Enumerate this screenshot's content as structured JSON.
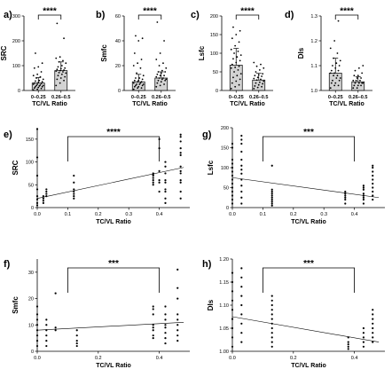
{
  "chart_data": [
    {
      "panel": "a)",
      "type": "bar",
      "ylabel": "SRC",
      "xlabel": "TC/VL Ratio",
      "categories": [
        "0–0.25",
        "0.26–0.5"
      ],
      "values": [
        30,
        80
      ],
      "errors": [
        22,
        35
      ],
      "ylim": [
        0,
        300
      ],
      "yticks": [
        0,
        100,
        200,
        300
      ],
      "significance": "****",
      "points": [
        [
          2,
          5,
          8,
          10,
          12,
          15,
          15,
          18,
          20,
          20,
          22,
          25,
          25,
          28,
          30,
          32,
          35,
          38,
          40,
          45,
          50,
          55,
          60,
          65,
          75,
          90,
          95,
          110,
          150
        ],
        [
          20,
          30,
          40,
          45,
          50,
          55,
          60,
          65,
          70,
          72,
          75,
          78,
          80,
          82,
          85,
          88,
          90,
          95,
          100,
          110,
          115,
          120,
          130,
          135,
          210,
          270
        ]
      ]
    },
    {
      "panel": "b)",
      "type": "bar",
      "ylabel": "Smfc",
      "xlabel": "TC/VL Ratio",
      "categories": [
        "0–0.25",
        "0.26–0.5"
      ],
      "values": [
        7,
        10
      ],
      "errors": [
        6,
        5
      ],
      "ylim": [
        0,
        60
      ],
      "yticks": [
        0,
        20,
        40,
        60
      ],
      "significance": "****",
      "points": [
        [
          1,
          2,
          2,
          3,
          3,
          4,
          4,
          5,
          5,
          5,
          6,
          6,
          7,
          7,
          8,
          8,
          9,
          10,
          10,
          12,
          14,
          18,
          20,
          22,
          25,
          30,
          40,
          42,
          44
        ],
        [
          3,
          4,
          5,
          6,
          7,
          8,
          8,
          9,
          9,
          10,
          10,
          11,
          12,
          12,
          13,
          14,
          15,
          15,
          16,
          18,
          20,
          22,
          25,
          30,
          40,
          55
        ]
      ]
    },
    {
      "panel": "c)",
      "type": "bar",
      "ylabel": "Lsfc",
      "xlabel": "TC/VL Ratio",
      "categories": [
        "0–0.25",
        "0.26–0.5"
      ],
      "values": [
        68,
        28
      ],
      "errors": [
        45,
        18
      ],
      "ylim": [
        0,
        200
      ],
      "yticks": [
        0,
        50,
        100,
        150,
        200
      ],
      "significance": "****",
      "points": [
        [
          5,
          10,
          15,
          20,
          25,
          30,
          35,
          40,
          45,
          50,
          55,
          60,
          62,
          65,
          70,
          75,
          80,
          85,
          90,
          95,
          100,
          105,
          110,
          120,
          130,
          140,
          150,
          160,
          170
        ],
        [
          5,
          8,
          10,
          12,
          15,
          18,
          20,
          22,
          25,
          28,
          30,
          32,
          35,
          38,
          40,
          42,
          45,
          50,
          55,
          60,
          65,
          70,
          75
        ]
      ]
    },
    {
      "panel": "d)",
      "type": "bar",
      "ylabel": "DIs",
      "xlabel": "TC/VL Ratio",
      "categories": [
        "0–0.25",
        "0.26–0.5"
      ],
      "values": [
        1.07,
        1.035
      ],
      "errors": [
        0.06,
        0.02
      ],
      "ylim": [
        1.0,
        1.3
      ],
      "yticks": [
        1.0,
        1.1,
        1.2,
        1.3
      ],
      "significance": "****",
      "points": [
        [
          1.01,
          1.02,
          1.02,
          1.03,
          1.03,
          1.04,
          1.04,
          1.05,
          1.05,
          1.06,
          1.06,
          1.07,
          1.07,
          1.08,
          1.08,
          1.09,
          1.1,
          1.1,
          1.11,
          1.12,
          1.13,
          1.15,
          1.17,
          1.2,
          1.28
        ],
        [
          1.01,
          1.01,
          1.02,
          1.02,
          1.02,
          1.03,
          1.03,
          1.03,
          1.03,
          1.04,
          1.04,
          1.04,
          1.05,
          1.05,
          1.06,
          1.06,
          1.07,
          1.08,
          1.09,
          1.1
        ]
      ]
    },
    {
      "panel": "e)",
      "type": "scatter",
      "ylabel": "SRC",
      "xlabel": "TC/VL Ratio",
      "xlim": [
        0,
        0.5
      ],
      "ylim": [
        0,
        175
      ],
      "xticks": [
        0.0,
        0.1,
        0.2,
        0.3,
        0.4
      ],
      "yticks": [
        0,
        50,
        100,
        150
      ],
      "significance": "****",
      "bracket": [
        0.1,
        0.4
      ],
      "trend": [
        [
          0,
          20
        ],
        [
          0.48,
          88
        ]
      ],
      "points": [
        [
          0.0,
          5
        ],
        [
          0.0,
          10
        ],
        [
          0.0,
          18
        ],
        [
          0.0,
          25
        ],
        [
          0.0,
          40
        ],
        [
          0.0,
          70
        ],
        [
          0.0,
          110
        ],
        [
          0.0,
          172
        ],
        [
          0.02,
          10
        ],
        [
          0.02,
          15
        ],
        [
          0.02,
          20
        ],
        [
          0.02,
          25
        ],
        [
          0.03,
          25
        ],
        [
          0.03,
          30
        ],
        [
          0.03,
          35
        ],
        [
          0.03,
          40
        ],
        [
          0.12,
          20
        ],
        [
          0.12,
          25
        ],
        [
          0.12,
          30
        ],
        [
          0.12,
          35
        ],
        [
          0.12,
          40
        ],
        [
          0.12,
          55
        ],
        [
          0.12,
          70
        ],
        [
          0.38,
          50
        ],
        [
          0.38,
          55
        ],
        [
          0.38,
          60
        ],
        [
          0.38,
          65
        ],
        [
          0.38,
          70
        ],
        [
          0.38,
          72
        ],
        [
          0.38,
          75
        ],
        [
          0.4,
          35
        ],
        [
          0.4,
          55
        ],
        [
          0.4,
          60
        ],
        [
          0.4,
          80
        ],
        [
          0.4,
          130
        ],
        [
          0.4,
          150
        ],
        [
          0.42,
          10
        ],
        [
          0.42,
          20
        ],
        [
          0.42,
          35
        ],
        [
          0.42,
          40
        ],
        [
          0.42,
          55
        ],
        [
          0.42,
          60
        ],
        [
          0.42,
          75
        ],
        [
          0.42,
          90
        ],
        [
          0.42,
          100
        ],
        [
          0.47,
          20
        ],
        [
          0.47,
          35
        ],
        [
          0.47,
          55
        ],
        [
          0.47,
          60
        ],
        [
          0.47,
          75
        ],
        [
          0.47,
          80
        ],
        [
          0.47,
          90
        ],
        [
          0.47,
          115
        ],
        [
          0.47,
          120
        ],
        [
          0.47,
          130
        ],
        [
          0.47,
          145
        ],
        [
          0.47,
          155
        ],
        [
          0.47,
          160
        ]
      ]
    },
    {
      "panel": "g)",
      "type": "scatter",
      "ylabel": "Lsfc",
      "xlabel": "TC/VL Ratio",
      "xlim": [
        0,
        0.5
      ],
      "ylim": [
        0,
        200
      ],
      "xticks": [
        0.0,
        0.1,
        0.2,
        0.3,
        0.4
      ],
      "yticks": [
        0,
        50,
        100,
        150,
        200
      ],
      "significance": "***",
      "bracket": [
        0.1,
        0.4
      ],
      "trend": [
        [
          0,
          75
        ],
        [
          0.48,
          25
        ]
      ],
      "points": [
        [
          0.0,
          10
        ],
        [
          0.0,
          20
        ],
        [
          0.0,
          30
        ],
        [
          0.0,
          40
        ],
        [
          0.0,
          50
        ],
        [
          0.0,
          60
        ],
        [
          0.0,
          70
        ],
        [
          0.0,
          80
        ],
        [
          0.0,
          90
        ],
        [
          0.0,
          100
        ],
        [
          0.0,
          110
        ],
        [
          0.0,
          120
        ],
        [
          0.0,
          150
        ],
        [
          0.0,
          160
        ],
        [
          0.03,
          10
        ],
        [
          0.03,
          25
        ],
        [
          0.03,
          40
        ],
        [
          0.03,
          55
        ],
        [
          0.03,
          70
        ],
        [
          0.03,
          85
        ],
        [
          0.03,
          95
        ],
        [
          0.03,
          105
        ],
        [
          0.03,
          120
        ],
        [
          0.03,
          140
        ],
        [
          0.03,
          160
        ],
        [
          0.03,
          170
        ],
        [
          0.03,
          180
        ],
        [
          0.13,
          5
        ],
        [
          0.13,
          10
        ],
        [
          0.13,
          15
        ],
        [
          0.13,
          20
        ],
        [
          0.13,
          25
        ],
        [
          0.13,
          30
        ],
        [
          0.13,
          35
        ],
        [
          0.13,
          40
        ],
        [
          0.13,
          45
        ],
        [
          0.13,
          105
        ],
        [
          0.37,
          10
        ],
        [
          0.37,
          20
        ],
        [
          0.37,
          25
        ],
        [
          0.37,
          30
        ],
        [
          0.37,
          35
        ],
        [
          0.37,
          40
        ],
        [
          0.43,
          10
        ],
        [
          0.43,
          20
        ],
        [
          0.43,
          25
        ],
        [
          0.43,
          30
        ],
        [
          0.43,
          35
        ],
        [
          0.43,
          45
        ],
        [
          0.43,
          50
        ],
        [
          0.43,
          55
        ],
        [
          0.46,
          20
        ],
        [
          0.46,
          30
        ],
        [
          0.46,
          40
        ],
        [
          0.46,
          50
        ],
        [
          0.46,
          60
        ],
        [
          0.46,
          70
        ],
        [
          0.46,
          80
        ],
        [
          0.46,
          90
        ],
        [
          0.46,
          100
        ],
        [
          0.46,
          105
        ]
      ]
    },
    {
      "panel": "f)",
      "type": "scatter",
      "ylabel": "Smfc",
      "xlabel": "TC/VL Ratio",
      "xlim": [
        0,
        0.5
      ],
      "ylim": [
        0,
        35
      ],
      "xticks": [
        0.0,
        0.2,
        0.4
      ],
      "yticks": [
        0,
        10,
        20,
        30
      ],
      "significance": "***",
      "bracket": [
        0.1,
        0.4
      ],
      "trend": [
        [
          0,
          8
        ],
        [
          0.48,
          11
        ]
      ],
      "points": [
        [
          0.0,
          2
        ],
        [
          0.0,
          4
        ],
        [
          0.0,
          6
        ],
        [
          0.0,
          8
        ],
        [
          0.0,
          10
        ],
        [
          0.0,
          12
        ],
        [
          0.0,
          14
        ],
        [
          0.0,
          17
        ],
        [
          0.03,
          2
        ],
        [
          0.03,
          4
        ],
        [
          0.03,
          6
        ],
        [
          0.03,
          8
        ],
        [
          0.03,
          10
        ],
        [
          0.03,
          12
        ],
        [
          0.06,
          8
        ],
        [
          0.06,
          9
        ],
        [
          0.06,
          22
        ],
        [
          0.13,
          2
        ],
        [
          0.13,
          3
        ],
        [
          0.13,
          4
        ],
        [
          0.13,
          6
        ],
        [
          0.13,
          8
        ],
        [
          0.38,
          5
        ],
        [
          0.38,
          6
        ],
        [
          0.38,
          8
        ],
        [
          0.38,
          9
        ],
        [
          0.38,
          10
        ],
        [
          0.38,
          14
        ],
        [
          0.38,
          16
        ],
        [
          0.38,
          17
        ],
        [
          0.42,
          3
        ],
        [
          0.42,
          5
        ],
        [
          0.42,
          7
        ],
        [
          0.42,
          9
        ],
        [
          0.42,
          10
        ],
        [
          0.42,
          12
        ],
        [
          0.42,
          14
        ],
        [
          0.42,
          17
        ],
        [
          0.46,
          4
        ],
        [
          0.46,
          6
        ],
        [
          0.46,
          8
        ],
        [
          0.46,
          10
        ],
        [
          0.46,
          12
        ],
        [
          0.46,
          14
        ],
        [
          0.46,
          20
        ],
        [
          0.46,
          24
        ],
        [
          0.46,
          31
        ]
      ]
    },
    {
      "panel": "h)",
      "type": "scatter",
      "ylabel": "DIs",
      "xlabel": "TC/VL Ratio",
      "xlim": [
        0,
        0.5
      ],
      "ylim": [
        1.0,
        1.2
      ],
      "xticks": [
        0.0,
        0.2,
        0.4
      ],
      "yticks": [
        1.0,
        1.05,
        1.1,
        1.15,
        1.2
      ],
      "significance": "***",
      "bracket": [
        0.1,
        0.4
      ],
      "trend": [
        [
          0,
          1.075
        ],
        [
          0.48,
          1.02
        ]
      ],
      "points": [
        [
          0.0,
          1.01
        ],
        [
          0.0,
          1.03
        ],
        [
          0.0,
          1.05
        ],
        [
          0.0,
          1.07
        ],
        [
          0.0,
          1.09
        ],
        [
          0.0,
          1.11
        ],
        [
          0.0,
          1.13
        ],
        [
          0.0,
          1.15
        ],
        [
          0.0,
          1.17
        ],
        [
          0.03,
          1.02
        ],
        [
          0.03,
          1.04
        ],
        [
          0.03,
          1.06
        ],
        [
          0.03,
          1.08
        ],
        [
          0.03,
          1.1
        ],
        [
          0.03,
          1.12
        ],
        [
          0.03,
          1.14
        ],
        [
          0.03,
          1.16
        ],
        [
          0.03,
          1.18
        ],
        [
          0.13,
          1.01
        ],
        [
          0.13,
          1.02
        ],
        [
          0.13,
          1.03
        ],
        [
          0.13,
          1.04
        ],
        [
          0.13,
          1.05
        ],
        [
          0.13,
          1.06
        ],
        [
          0.13,
          1.07
        ],
        [
          0.13,
          1.08
        ],
        [
          0.13,
          1.09
        ],
        [
          0.13,
          1.1
        ],
        [
          0.13,
          1.11
        ],
        [
          0.13,
          1.12
        ],
        [
          0.38,
          1.005
        ],
        [
          0.38,
          1.01
        ],
        [
          0.38,
          1.015
        ],
        [
          0.38,
          1.02
        ],
        [
          0.38,
          1.03
        ],
        [
          0.43,
          1.01
        ],
        [
          0.43,
          1.02
        ],
        [
          0.43,
          1.03
        ],
        [
          0.43,
          1.04
        ],
        [
          0.43,
          1.05
        ],
        [
          0.46,
          1.02
        ],
        [
          0.46,
          1.03
        ],
        [
          0.46,
          1.04
        ],
        [
          0.46,
          1.05
        ],
        [
          0.46,
          1.06
        ],
        [
          0.46,
          1.07
        ],
        [
          0.46,
          1.08
        ],
        [
          0.46,
          1.09
        ]
      ]
    }
  ]
}
